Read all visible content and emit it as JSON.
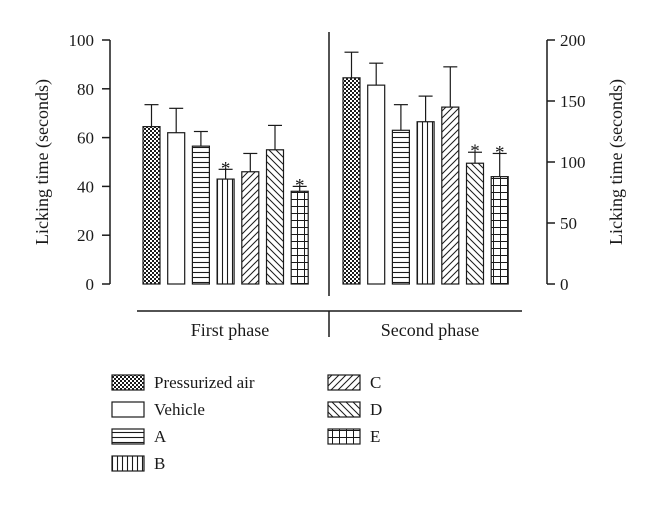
{
  "chart_data": {
    "type": "bar",
    "ylabel_left": "Licking time (seconds)",
    "ylabel_right": "Licking time (seconds)",
    "ylim_left": [
      0,
      100
    ],
    "ylim_right": [
      0,
      200
    ],
    "yticks_left": [
      "0",
      "20",
      "40",
      "60",
      "80",
      "100"
    ],
    "yticks_right": [
      "0",
      "50",
      "100",
      "150",
      "200"
    ],
    "grid": false,
    "legend_placement": "bottom-left",
    "categories": [
      "Pressurized air",
      "Vehicle",
      "A",
      "B",
      "C",
      "D",
      "E"
    ],
    "panels": [
      {
        "name": "First phase",
        "axis": "left",
        "values": [
          64.5,
          62,
          56.5,
          43,
          46,
          55,
          38
        ],
        "errors": [
          9,
          10,
          6,
          4,
          7.5,
          10,
          2
        ],
        "significant": [
          "",
          "",
          "",
          "*",
          "",
          "",
          "*"
        ]
      },
      {
        "name": "Second phase",
        "axis": "right",
        "values": [
          169,
          163,
          126,
          133,
          145,
          99,
          88
        ],
        "errors": [
          21,
          18,
          21,
          21,
          33,
          9,
          19
        ],
        "significant": [
          "",
          "",
          "",
          "",
          "",
          "*",
          "*"
        ]
      }
    ],
    "legend": [
      {
        "label": "Pressurized air",
        "pattern": "crosshatch"
      },
      {
        "label": "Vehicle",
        "pattern": "empty"
      },
      {
        "label": "A",
        "pattern": "horizontal"
      },
      {
        "label": "B",
        "pattern": "vertical"
      },
      {
        "label": "C",
        "pattern": "diag-up"
      },
      {
        "label": "D",
        "pattern": "diag-down"
      },
      {
        "label": "E",
        "pattern": "grid"
      }
    ],
    "colors": {
      "ink": "#1a1a1a",
      "background": "#ffffff"
    }
  }
}
